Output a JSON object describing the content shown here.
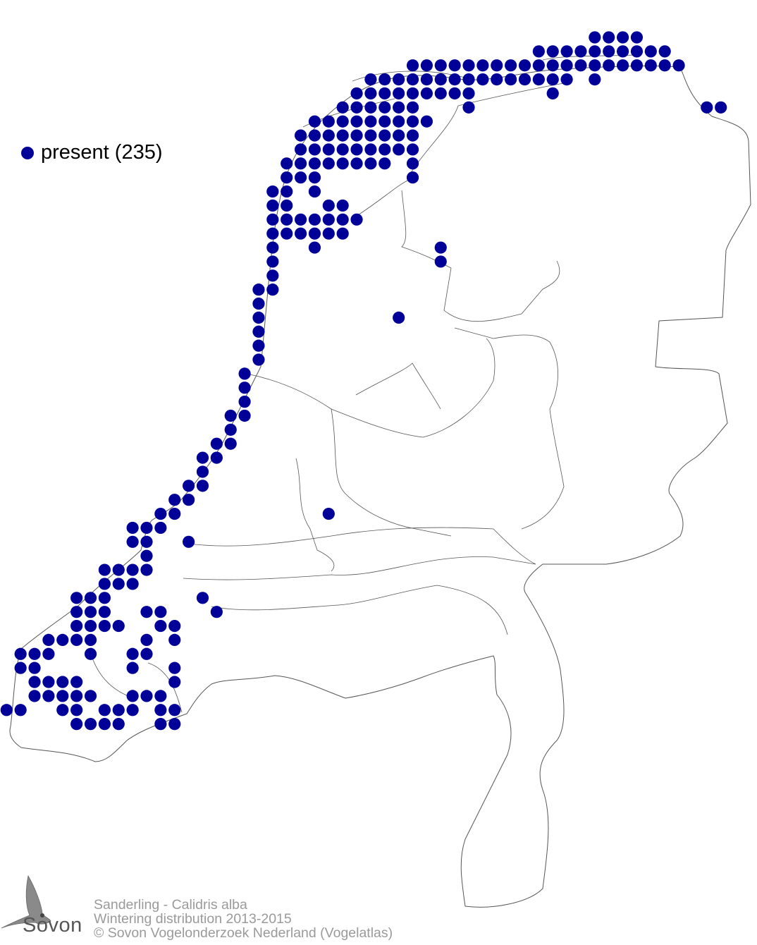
{
  "legend": {
    "items": [
      {
        "label": "present (235)",
        "color": "#000099",
        "symbol": "filled-circle"
      }
    ]
  },
  "footer": {
    "species": "Sanderling - Calidris alba",
    "subtitle": "Wintering distribution 2013-2015",
    "copyright": "© Sovon Vogelonderzoek Nederland (Vogelatlas)"
  },
  "logo": {
    "text": "Sovon"
  },
  "colors": {
    "presence": "#000099",
    "boundary": "#555555",
    "footer_text": "#9a9a9a"
  }
}
